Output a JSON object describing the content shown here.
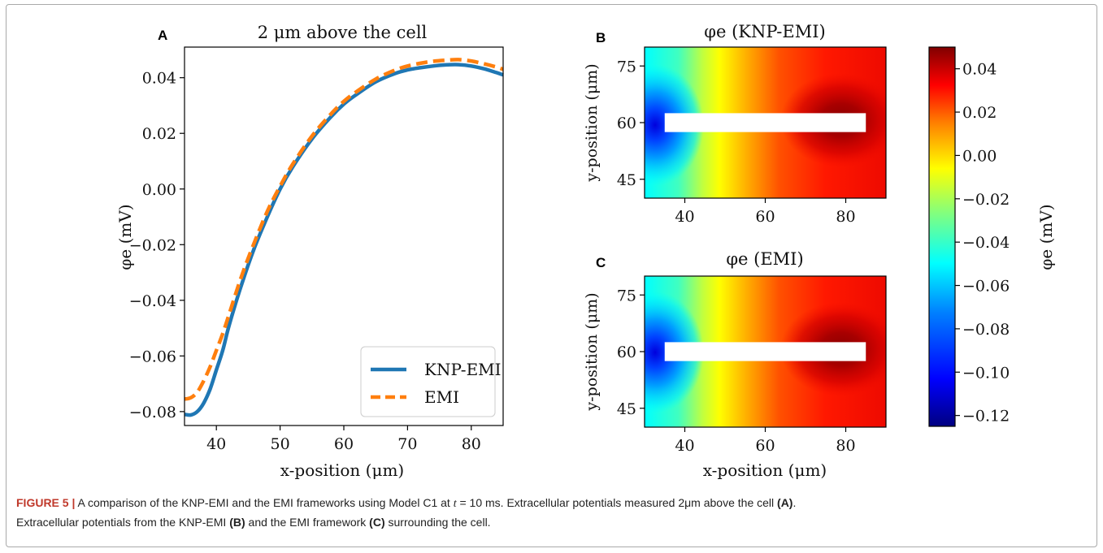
{
  "caption": {
    "label": "FIGURE 5 |",
    "line1_before_t": " A comparison of the KNP-EMI and the EMI frameworks using Model C1 at ",
    "t_var": "t",
    "line1_after_t": " = 10 ms. Extracellular potentials measured 2μm above the cell ",
    "ref_a": "(A)",
    "line1_end": ".",
    "line2_start": "Extracellular potentials from the KNP-EMI ",
    "ref_b": "(B)",
    "line2_mid": " and the EMI framework ",
    "ref_c": "(C)",
    "line2_end": " surrounding the cell."
  },
  "colors": {
    "knp": "#1f77b4",
    "emi": "#ff7f0e",
    "caption_label": "#c0392b",
    "colormap_jet": [
      "#000080",
      "#0000ff",
      "#0080ff",
      "#00ffff",
      "#80ff80",
      "#ffff00",
      "#ff8000",
      "#ff0000",
      "#800000"
    ]
  },
  "chart_data": [
    {
      "panel": "A",
      "type": "line",
      "title": "2 μm above the cell",
      "xlabel": "x-position (μm)",
      "ylabel": "φe (mV)",
      "xlim": [
        35,
        85
      ],
      "ylim": [
        -0.085,
        0.051
      ],
      "xticks": [
        40,
        50,
        60,
        70,
        80
      ],
      "yticks": [
        0.04,
        0.02,
        0.0,
        -0.02,
        -0.04,
        -0.06,
        -0.08
      ],
      "ytick_labels": [
        "0.04",
        "0.02",
        "0.00",
        "−0.02",
        "−0.04",
        "−0.06",
        "−0.08"
      ],
      "grid": false,
      "legend_position": "lower-right",
      "series": [
        {
          "name": "KNP-EMI",
          "style": "solid",
          "x": [
            35,
            36,
            37,
            38,
            39,
            40,
            41,
            42,
            44,
            46,
            48,
            50,
            52,
            55,
            58,
            60,
            62,
            65,
            68,
            70,
            72,
            74,
            76,
            78,
            80,
            82,
            84,
            85
          ],
          "y": [
            -0.081,
            -0.0812,
            -0.08,
            -0.077,
            -0.072,
            -0.065,
            -0.058,
            -0.049,
            -0.034,
            -0.021,
            -0.01,
            0.0,
            0.008,
            0.018,
            0.026,
            0.0305,
            0.034,
            0.0385,
            0.0415,
            0.0428,
            0.0436,
            0.0442,
            0.0446,
            0.0447,
            0.0442,
            0.0432,
            0.0418,
            0.041
          ]
        },
        {
          "name": "EMI",
          "style": "dashed",
          "x": [
            35,
            36,
            37,
            38,
            39,
            40,
            41,
            42,
            44,
            46,
            48,
            50,
            52,
            55,
            58,
            60,
            62,
            65,
            68,
            70,
            72,
            74,
            76,
            78,
            80,
            82,
            84,
            85
          ],
          "y": [
            -0.0755,
            -0.075,
            -0.073,
            -0.069,
            -0.064,
            -0.058,
            -0.052,
            -0.045,
            -0.031,
            -0.019,
            -0.008,
            0.001,
            0.009,
            0.019,
            0.027,
            0.0315,
            0.035,
            0.0395,
            0.0427,
            0.0442,
            0.0452,
            0.0459,
            0.0463,
            0.0465,
            0.046,
            0.045,
            0.0438,
            0.043
          ]
        }
      ]
    },
    {
      "panel": "B",
      "type": "heatmap",
      "title": "φe (KNP-EMI)",
      "xlabel": "",
      "ylabel": "y-position (μm)",
      "xlim": [
        30,
        90
      ],
      "ylim": [
        40,
        80
      ],
      "xticks": [
        40,
        60,
        80
      ],
      "yticks": [
        45,
        60,
        75
      ],
      "cell_rect": {
        "x0": 35,
        "x1": 85,
        "y0": 57.5,
        "y1": 62.5
      }
    },
    {
      "panel": "C",
      "type": "heatmap",
      "title": "φe (EMI)",
      "xlabel": "x-position (μm)",
      "ylabel": "y-position (μm)",
      "xlim": [
        30,
        90
      ],
      "ylim": [
        40,
        80
      ],
      "xticks": [
        40,
        60,
        80
      ],
      "yticks": [
        45,
        60,
        75
      ],
      "cell_rect": {
        "x0": 35,
        "x1": 85,
        "y0": 57.5,
        "y1": 62.5
      }
    },
    {
      "type": "colorbar",
      "label": "φe (mV)",
      "vlim": [
        -0.125,
        0.05
      ],
      "ticks": [
        0.04,
        0.02,
        0.0,
        -0.02,
        -0.04,
        -0.06,
        -0.08,
        -0.1,
        -0.12
      ],
      "tick_labels": [
        "0.04",
        "0.02",
        "0.00",
        "−0.02",
        "−0.04",
        "−0.06",
        "−0.08",
        "−0.10",
        "−0.12"
      ]
    }
  ]
}
